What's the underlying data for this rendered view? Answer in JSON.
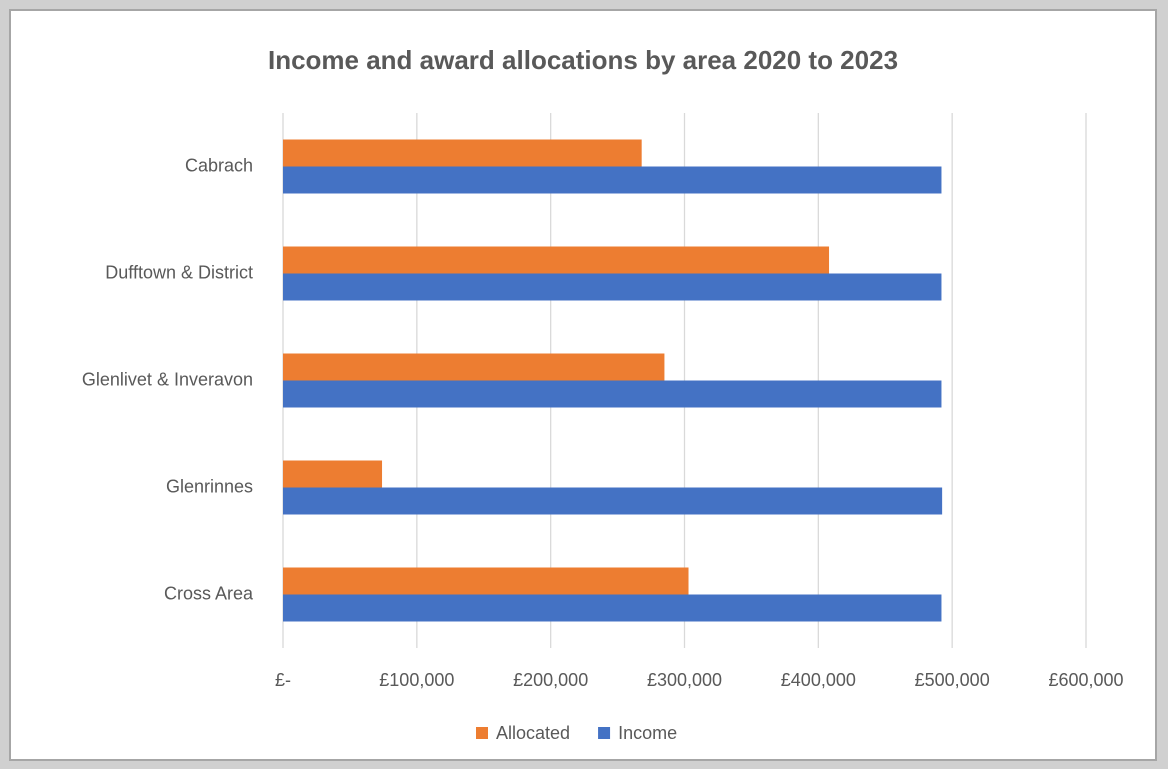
{
  "chart_data": {
    "type": "bar",
    "orientation": "horizontal",
    "title": "Income and award allocations by area 2020 to 2023",
    "categories": [
      "Cabrach",
      "Dufftown & District",
      "Glenlivet & Inveravon",
      "Glenrinnes",
      "Cross Area"
    ],
    "series": [
      {
        "name": "Allocated",
        "color": "#ed7d31",
        "values": [
          268000,
          408000,
          285000,
          74000,
          303000
        ]
      },
      {
        "name": "Income",
        "color": "#4472c4",
        "values": [
          492000,
          492000,
          492000,
          492500,
          492000
        ]
      }
    ],
    "xlim": [
      0,
      600000
    ],
    "xticks": [
      {
        "value": 0,
        "label": "£-"
      },
      {
        "value": 100000,
        "label": "£100,000"
      },
      {
        "value": 200000,
        "label": "£200,000"
      },
      {
        "value": 300000,
        "label": "£300,000"
      },
      {
        "value": 400000,
        "label": "£400,000"
      },
      {
        "value": 500000,
        "label": "£500,000"
      },
      {
        "value": 600000,
        "label": "£600,000"
      }
    ],
    "grid": true,
    "legend": "bottom"
  }
}
